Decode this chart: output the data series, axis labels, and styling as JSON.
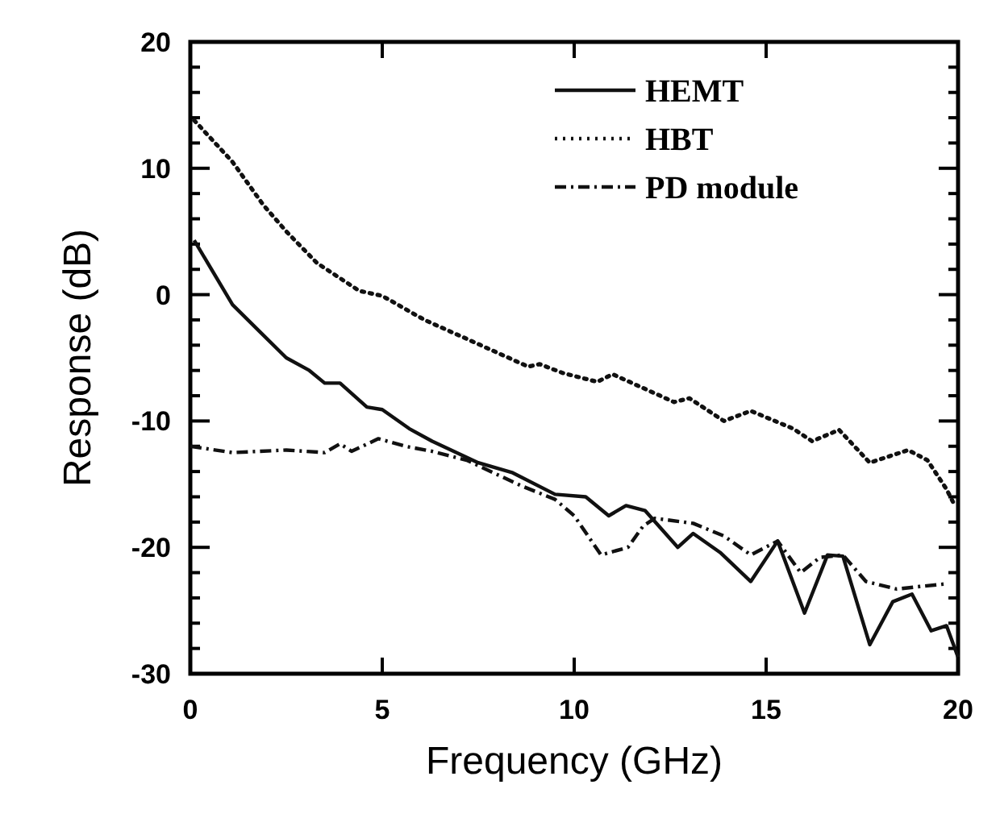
{
  "chart_data": {
    "type": "line",
    "xlabel": "Frequency (GHz)",
    "ylabel": "Response (dB)",
    "xlim": [
      0,
      20
    ],
    "ylim": [
      -30,
      20
    ],
    "xticks": [
      0,
      5,
      10,
      15,
      20
    ],
    "yticks": [
      -30,
      {
        "value": -28,
        "label": null
      },
      {
        "value": -26,
        "label": null
      },
      {
        "value": -24,
        "label": null
      },
      {
        "value": -22,
        "label": null
      },
      -20,
      {
        "value": -18,
        "label": null
      },
      {
        "value": -16,
        "label": null
      },
      {
        "value": -14,
        "label": null
      },
      {
        "value": -12,
        "label": null
      },
      -10,
      {
        "value": -8,
        "label": null
      },
      {
        "value": -6,
        "label": null
      },
      {
        "value": -4,
        "label": null
      },
      {
        "value": -2,
        "label": null
      },
      0,
      {
        "value": 2,
        "label": null
      },
      {
        "value": 4,
        "label": null
      },
      {
        "value": 6,
        "label": null
      },
      {
        "value": 8,
        "label": null
      },
      10,
      {
        "value": 12,
        "label": null
      },
      {
        "value": 14,
        "label": null
      },
      {
        "value": 16,
        "label": null
      },
      {
        "value": 18,
        "label": null
      },
      20
    ],
    "grid": false,
    "legend": "top right",
    "series": [
      {
        "name": "HEMT",
        "color": "#111111",
        "line_style": "solid",
        "x": [
          0.1,
          1.1,
          1.8,
          2.5,
          3.1,
          3.5,
          3.9,
          4.6,
          5.0,
          5.7,
          6.3,
          7.5,
          8.4,
          9.5,
          10.3,
          10.9,
          11.35,
          11.85,
          12.7,
          13.1,
          13.8,
          14.6,
          15.3,
          16.0,
          16.6,
          17.0,
          17.7,
          18.3,
          18.8,
          19.3,
          19.7,
          20.0
        ],
        "values": [
          4.3,
          -0.8,
          -2.9,
          -5,
          -6,
          -7,
          -7,
          -8.9,
          -9.1,
          -10.6,
          -11.6,
          -13.3,
          -14.1,
          -15.8,
          -16,
          -17.5,
          -16.7,
          -17.1,
          -20,
          -18.9,
          -20.4,
          -22.7,
          -19.5,
          -25.2,
          -20.6,
          -20.7,
          -27.7,
          -24.3,
          -23.7,
          -26.6,
          -26.2,
          -28.7
        ]
      },
      {
        "name": "HBT",
        "color": "#111111",
        "line_style": "dotted",
        "x": [
          0.1,
          1.1,
          1.9,
          2.5,
          3.3,
          4.4,
          5.0,
          6.1,
          7.2,
          8.8,
          9.1,
          9.7,
          10.6,
          11.0,
          12.6,
          13.0,
          13.9,
          14.6,
          15.7,
          16.2,
          16.9,
          17.7,
          18.7,
          19.2,
          19.7,
          19.9
        ],
        "values": [
          13.8,
          10.5,
          7.1,
          5,
          2.5,
          0.3,
          -0.1,
          -2,
          -3.5,
          -5.7,
          -5.5,
          -6.2,
          -6.9,
          -6.3,
          -8.5,
          -8.2,
          -10,
          -9.2,
          -10.6,
          -11.6,
          -10.7,
          -13.3,
          -12.3,
          -13.1,
          -15.4,
          -16.6
        ]
      },
      {
        "name": "PD module",
        "color": "#111111",
        "line_style": "dashdot",
        "x": [
          0,
          1.1,
          2.5,
          3.5,
          3.9,
          4.2,
          4.9,
          5.6,
          6.3,
          7.2,
          8.6,
          9.5,
          10.0,
          10.7,
          11.4,
          11.8,
          12.1,
          13.1,
          13.9,
          14.6,
          15.3,
          15.9,
          16.4,
          17.0,
          17.6,
          18.4,
          19.0,
          19.65
        ],
        "values": [
          -12,
          -12.5,
          -12.3,
          -12.5,
          -11.8,
          -12.4,
          -11.4,
          -12,
          -12.4,
          -13.1,
          -15.1,
          -16.2,
          -17.5,
          -20.6,
          -20,
          -18.3,
          -17.7,
          -18.1,
          -19.1,
          -20.6,
          -19.5,
          -22,
          -20.8,
          -20.6,
          -22.7,
          -23.3,
          -23.1,
          -22.9
        ]
      }
    ]
  }
}
